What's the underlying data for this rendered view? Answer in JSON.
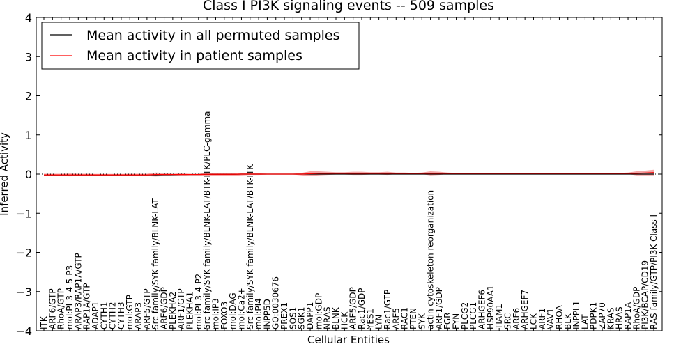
{
  "chart_data": {
    "type": "line",
    "title": "Class I PI3K signaling events -- 509 samples",
    "xlabel": "Cellular Entities",
    "ylabel": "Inferred Activity",
    "ylim": [
      -4,
      4
    ],
    "yticks": [
      -4,
      -3,
      -2,
      -1,
      0,
      1,
      2,
      3,
      4
    ],
    "ytick_labels": [
      "−4",
      "−3",
      "−2",
      "−1",
      "0",
      "1",
      "2",
      "3",
      "4"
    ],
    "grid": false,
    "legend_position": "top-left",
    "categories": [
      "ITK",
      "ARF6/GTP",
      "RhoA/GTP",
      "mol:PI-3-4-5-P3",
      "ARAP3/RAP1A/GTP",
      "RAP1A/GTP",
      "ADAP1",
      "CYTH1",
      "CYTH2",
      "CYTH3",
      "mol:GTP",
      "ARAP3",
      "ARF5/GTP",
      "Src family/SYK family/BLNK-LAT",
      "ARF6/GDP",
      "PLEKHA2",
      "ARF1/GTP",
      "PLEKHA1",
      "mol:PI-3-4-P2",
      "Src family/SYK family/BLNK-LAT/BTK-ITK/PLC-gamma",
      "mol:IP3",
      "FOXO3",
      "mol:DAG",
      "mol:Ca2+",
      "Src family/SYK family/BLNK-LAT/BTK-ITK",
      "mol:PI4",
      "INPP5D",
      "GO:0030676",
      "PREX1",
      "SOS1",
      "SGK1",
      "DAPP1",
      "mol:GDP",
      "NRAS",
      "BLNK",
      "HCK",
      "ARF5/GDP",
      "Rac1/GDP",
      "YES1",
      "LYN",
      "Rac1/GTP",
      "ARF5",
      "RAC1",
      "PTEN",
      "SYK",
      "actin cytoskeleton reorganization",
      "ARF1/GDP",
      "FGR",
      "FYN",
      "PLCG2",
      "PLCG1",
      "ARHGEF6",
      "HSP90AA1",
      "TIAM1",
      "SRC",
      "ARF6",
      "ARHGEF7",
      "LCK",
      "ARF1",
      "VAV1",
      "RHOA",
      "BLK",
      "INPPL1",
      "LAT",
      "PDPK1",
      "ZAP70",
      "KRAS",
      "HRAS",
      "RAP1A",
      "RhoA/GDP",
      "PI3K/BCAP/CD19",
      "RAS family/GTP/PI3K Class I"
    ],
    "series": [
      {
        "name": "Mean activity in all permuted samples",
        "color": "#000000",
        "values": [
          -0.02,
          -0.02,
          -0.02,
          -0.02,
          -0.02,
          -0.02,
          -0.02,
          -0.02,
          -0.02,
          -0.02,
          -0.02,
          -0.02,
          -0.02,
          -0.02,
          -0.015,
          -0.015,
          -0.01,
          -0.01,
          -0.01,
          -0.005,
          -0.005,
          -0.005,
          -0.005,
          0,
          0,
          0,
          0,
          0,
          0,
          0,
          0,
          0,
          0,
          0,
          0,
          0,
          0,
          0,
          0,
          0,
          0,
          0,
          0,
          0,
          0,
          0,
          0,
          0,
          0,
          0,
          0,
          0,
          0,
          0,
          0,
          0,
          0,
          0,
          0,
          0,
          0,
          0,
          0,
          0,
          0,
          0,
          0,
          0,
          0,
          0,
          0,
          0
        ]
      },
      {
        "name": "Mean activity in patient samples",
        "color": "#ff0000",
        "values": [
          -0.02,
          -0.02,
          -0.02,
          -0.02,
          -0.02,
          -0.02,
          -0.02,
          -0.02,
          -0.02,
          -0.02,
          -0.02,
          -0.02,
          -0.02,
          -0.01,
          -0.01,
          -0.01,
          -0.01,
          -0.01,
          -0.01,
          -0.005,
          -0.005,
          -0.005,
          -0.005,
          0,
          0,
          0,
          0,
          0,
          0,
          0,
          0,
          0.01,
          0.02,
          0.02,
          0.02,
          0.02,
          0.02,
          0.02,
          0.02,
          0.02,
          0.02,
          0.02,
          0.02,
          0.02,
          0.02,
          0.02,
          0.02,
          0.02,
          0.02,
          0.02,
          0.02,
          0.02,
          0.02,
          0.02,
          0.02,
          0.02,
          0.02,
          0.02,
          0.02,
          0.02,
          0.02,
          0.02,
          0.02,
          0.02,
          0.02,
          0.02,
          0.02,
          0.02,
          0.02,
          0.02,
          0.03,
          0.04
        ],
        "band_halfwidth": [
          0.03,
          0.03,
          0.03,
          0.035,
          0.03,
          0.03,
          0.025,
          0.025,
          0.025,
          0.025,
          0.03,
          0.03,
          0.03,
          0.05,
          0.04,
          0.02,
          0.03,
          0.02,
          0.02,
          0.04,
          0.035,
          0.03,
          0.04,
          0.03,
          0.02,
          0.02,
          0.01,
          0.01,
          0.01,
          0.01,
          0.03,
          0.06,
          0.05,
          0.04,
          0.03,
          0.03,
          0.04,
          0.04,
          0.03,
          0.03,
          0.04,
          0.02,
          0.02,
          0.01,
          0.02,
          0.05,
          0.04,
          0.02,
          0.01,
          0.01,
          0.01,
          0.01,
          0.01,
          0.01,
          0.01,
          0.01,
          0.01,
          0.01,
          0.01,
          0.01,
          0.01,
          0.01,
          0.01,
          0.01,
          0.01,
          0.01,
          0.01,
          0.01,
          0.02,
          0.05,
          0.06,
          0.07
        ]
      }
    ],
    "dotted_reference_y": 0
  }
}
